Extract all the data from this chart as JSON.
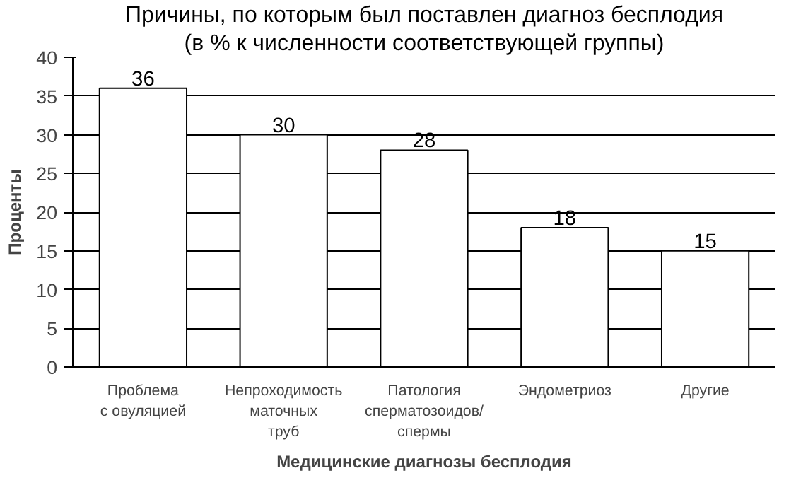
{
  "chart_data": {
    "type": "bar",
    "title": "Причины, по которым был поставлен диагноз бесплодия",
    "subtitle": "(в % к численности соответствующей группы)",
    "xlabel": "Медицинские диагнозы бесплодия",
    "ylabel": "Проценты",
    "categories": [
      "Проблема\nс овуляцией",
      "Непроходимость\nматочных\nтруб",
      "Патология\nсперматозоидов/\nспермы",
      "Эндометриоз",
      "Другие"
    ],
    "values": [
      36,
      30,
      28,
      18,
      15
    ],
    "color": "#ffffff",
    "ylim": [
      0,
      40
    ],
    "yticks": [
      0,
      5,
      10,
      15,
      20,
      25,
      30,
      35,
      40
    ],
    "grid": "y",
    "data_labels": true
  }
}
